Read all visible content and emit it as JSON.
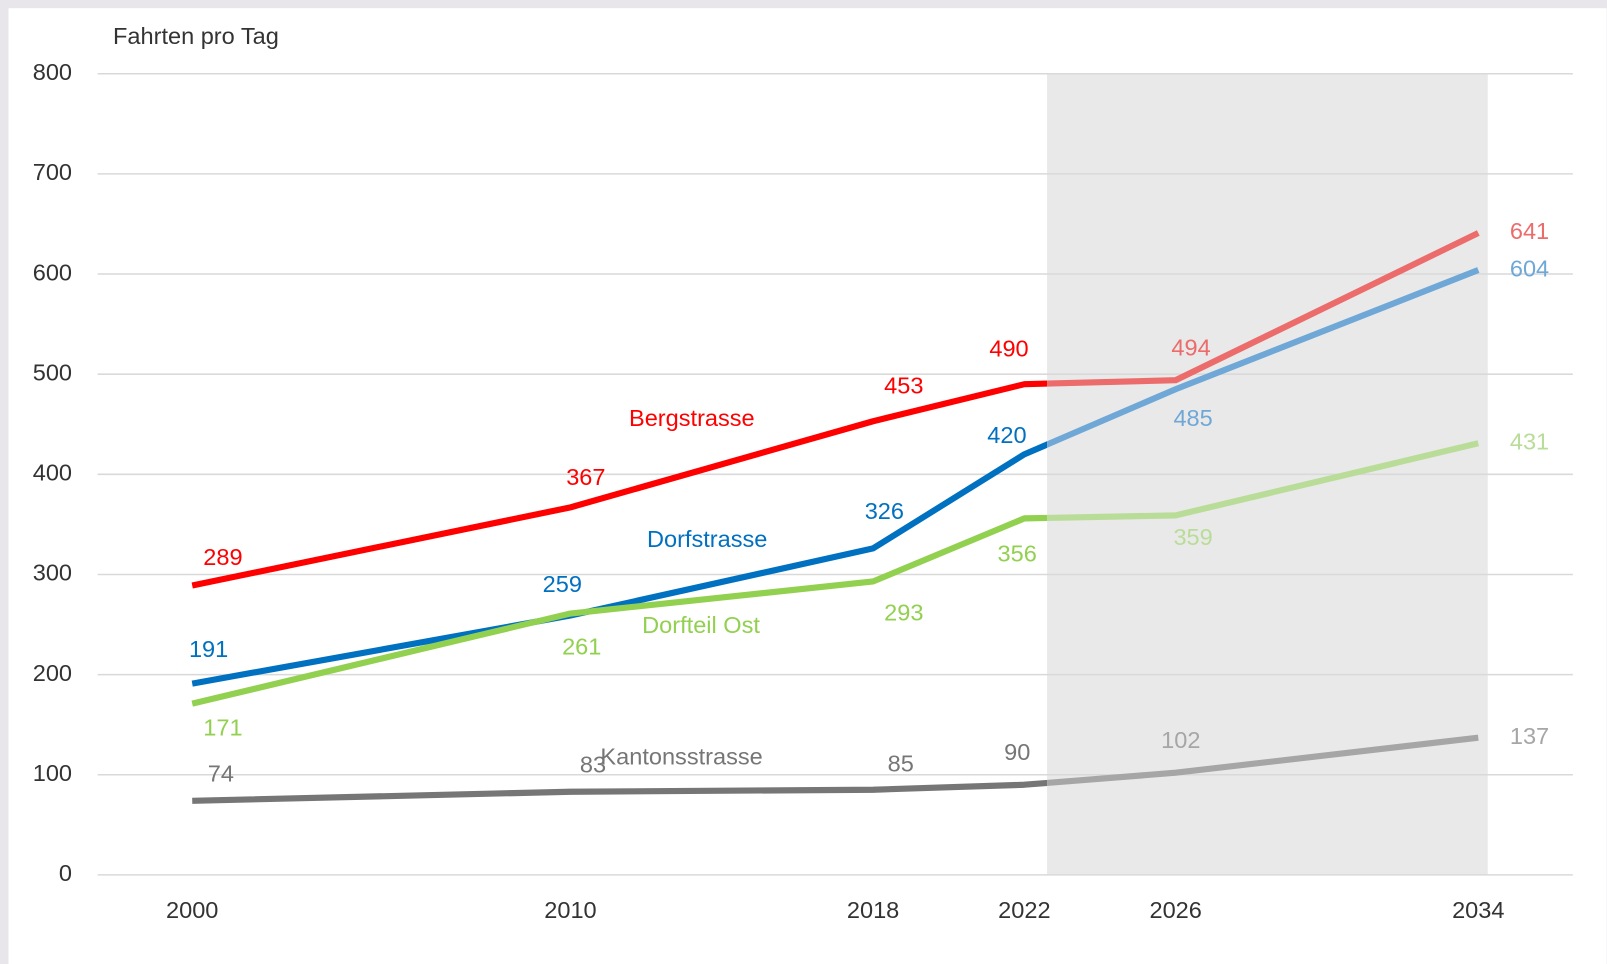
{
  "chart_data": {
    "type": "line",
    "y_axis_label": "Fahrten pro Tag",
    "x": [
      2000,
      2010,
      2018,
      2022,
      2026,
      2034
    ],
    "xlim": [
      1997.5,
      2036.5
    ],
    "xticks": [
      2000,
      2010,
      2018,
      2022,
      2026,
      2034
    ],
    "ylim": [
      0,
      800
    ],
    "yticks": [
      0,
      100,
      200,
      300,
      400,
      500,
      600,
      700,
      800
    ],
    "grid": true,
    "shaded_xrange": [
      2022.6,
      2034.25
    ],
    "series": [
      {
        "name": "Bergstrasse",
        "color": "#ff0000",
        "forecast_color": "#ec6b6b",
        "values": [
          289,
          367,
          453,
          490,
          494,
          641
        ]
      },
      {
        "name": "Dorfstrasse",
        "color": "#0070c0",
        "forecast_color": "#6fa8d6",
        "values": [
          191,
          259,
          326,
          420,
          485,
          604
        ]
      },
      {
        "name": "Dorfteil Ost",
        "color": "#92d050",
        "forecast_color": "#b9dd98",
        "values": [
          171,
          261,
          293,
          356,
          359,
          431
        ]
      },
      {
        "name": "Kantonsstrasse",
        "color": "#767676",
        "forecast_color": "#a6a6a6",
        "values": [
          74,
          83,
          85,
          90,
          102,
          137
        ]
      }
    ]
  }
}
